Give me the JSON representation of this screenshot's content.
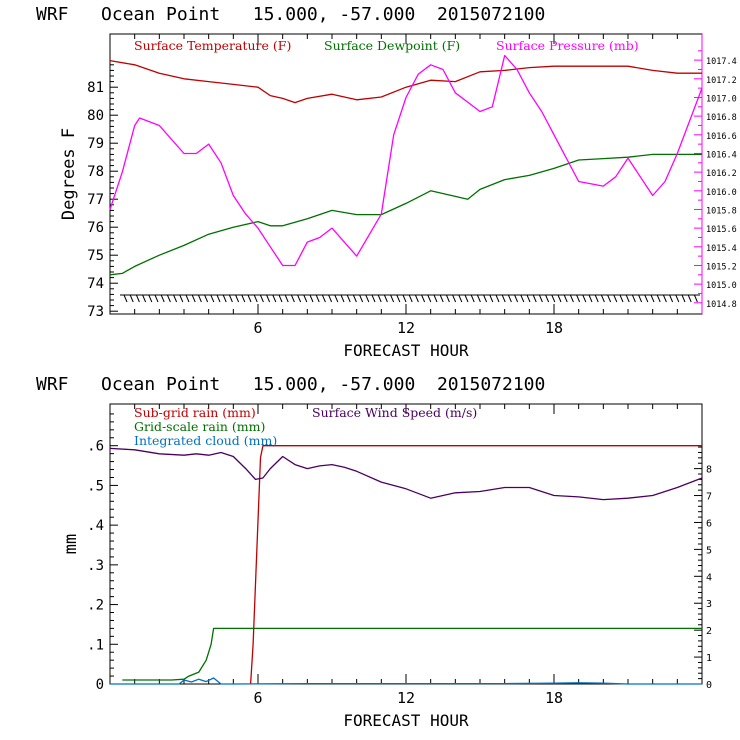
{
  "chart_data": [
    {
      "type": "line",
      "title": "WRF   Ocean Point   15.000, -57.000  2015072100",
      "xlabel": "FORECAST HOUR",
      "ylabel": "Degrees F",
      "xlim": [
        0,
        24
      ],
      "ylim": [
        72.9,
        82.9
      ],
      "xticks": [
        6,
        12,
        18
      ],
      "xtick_labels": [
        "6",
        "12",
        "18"
      ],
      "yticks": [
        73,
        74,
        75,
        76,
        77,
        78,
        79,
        80,
        81
      ],
      "ytick_labels": [
        "73",
        "74",
        "75",
        "76",
        "77",
        "78",
        "79",
        "80",
        "81"
      ],
      "y2lim": [
        1014.68,
        1017.68
      ],
      "y2ticks": [
        1014.8,
        1015.0,
        1015.2,
        1015.4,
        1015.6,
        1015.8,
        1016.0,
        1016.2,
        1016.4,
        1016.6,
        1016.8,
        1017.0,
        1017.2,
        1017.4
      ],
      "y2tick_labels": [
        "1014.8",
        "1015.0",
        "1015.2",
        "1015.4",
        "1015.6",
        "1015.8",
        "1016.0",
        "1016.2",
        "1016.4",
        "1016.6",
        "1016.8",
        "1017.0",
        "1017.2",
        "1017.4"
      ],
      "series": [
        {
          "name": "Surface Temperature (F)",
          "color": "#c00000",
          "axis": "left",
          "x": [
            0,
            1,
            2,
            3,
            4,
            5,
            6,
            6.5,
            7,
            7.5,
            8,
            9,
            10,
            11,
            12,
            13,
            14,
            15,
            16,
            17,
            18,
            19,
            20,
            21,
            22,
            23,
            24
          ],
          "y": [
            81.95,
            81.8,
            81.5,
            81.3,
            81.2,
            81.1,
            81.0,
            80.7,
            80.6,
            80.45,
            80.6,
            80.75,
            80.55,
            80.65,
            81.0,
            81.25,
            81.2,
            81.55,
            81.6,
            81.7,
            81.75,
            81.75,
            81.75,
            81.75,
            81.6,
            81.5,
            81.5
          ]
        },
        {
          "name": "Surface Dewpoint (F)",
          "color": "#007000",
          "axis": "left",
          "x": [
            0,
            0.5,
            1,
            2,
            3,
            4,
            5,
            6,
            6.5,
            7,
            8,
            9,
            10,
            11,
            12,
            13,
            14,
            14.5,
            15,
            16,
            17,
            18,
            19,
            20,
            21,
            22,
            24
          ],
          "y": [
            74.3,
            74.35,
            74.6,
            75.0,
            75.35,
            75.75,
            76.0,
            76.2,
            76.05,
            76.05,
            76.3,
            76.6,
            76.45,
            76.45,
            76.85,
            77.3,
            77.1,
            77.0,
            77.35,
            77.7,
            77.85,
            78.1,
            78.4,
            78.45,
            78.5,
            78.6,
            78.6
          ]
        },
        {
          "name": "Surface Pressure (mb)",
          "color": "#ff00ff",
          "axis": "right",
          "x": [
            0,
            0.5,
            1,
            1.2,
            2,
            3,
            3.5,
            4,
            4.5,
            5,
            5.5,
            6,
            6.5,
            7,
            7.5,
            8,
            8.5,
            9,
            9.5,
            10,
            11,
            11.5,
            12,
            12.5,
            13,
            13.5,
            14,
            14.5,
            15,
            15.5,
            16,
            16.5,
            17,
            17.5,
            18,
            19,
            20,
            20.5,
            21,
            21.5,
            22,
            22.5,
            23,
            24
          ],
          "y": [
            1015.8,
            1016.2,
            1016.7,
            1016.78,
            1016.7,
            1016.4,
            1016.4,
            1016.5,
            1016.3,
            1015.95,
            1015.75,
            1015.6,
            1015.4,
            1015.2,
            1015.2,
            1015.45,
            1015.5,
            1015.6,
            1015.45,
            1015.3,
            1015.75,
            1016.6,
            1017.0,
            1017.25,
            1017.35,
            1017.3,
            1017.05,
            1016.95,
            1016.85,
            1016.9,
            1017.45,
            1017.3,
            1017.05,
            1016.85,
            1016.6,
            1016.1,
            1016.05,
            1016.15,
            1016.35,
            1016.15,
            1015.95,
            1016.1,
            1016.4,
            1017.1
          ]
        }
      ]
    },
    {
      "type": "line",
      "title": "WRF   Ocean Point   15.000, -57.000  2015072100",
      "xlabel": "FORECAST HOUR",
      "ylabel": "mm",
      "xlim": [
        0,
        24
      ],
      "ylim": [
        0,
        0.705
      ],
      "xticks": [
        6,
        12,
        18
      ],
      "xtick_labels": [
        "6",
        "12",
        "18"
      ],
      "yticks": [
        0,
        0.1,
        0.2,
        0.3,
        0.4,
        0.5,
        0.6
      ],
      "ytick_labels": [
        "0",
        ".1",
        ".2",
        ".3",
        ".4",
        ".5",
        ".6"
      ],
      "y2lim": [
        0,
        10.4
      ],
      "y2ticks": [
        0,
        1,
        2,
        3,
        4,
        5,
        6,
        7,
        8
      ],
      "y2tick_labels": [
        "0",
        "1",
        "2",
        "3",
        "4",
        "5",
        "6",
        "7",
        "8"
      ],
      "series": [
        {
          "name": "Sub-grid rain (mm)",
          "color": "#c00000",
          "axis": "left",
          "x": [
            5.7,
            5.8,
            6.1,
            6.2,
            24
          ],
          "y": [
            0,
            0.1,
            0.57,
            0.6,
            0.6
          ]
        },
        {
          "name": "Grid-scale rain (mm)",
          "color": "#007000",
          "axis": "left",
          "x": [
            0.5,
            2.5,
            3.0,
            3.2,
            3.6,
            3.9,
            4.1,
            4.2,
            24
          ],
          "y": [
            0.01,
            0.01,
            0.012,
            0.02,
            0.03,
            0.06,
            0.1,
            0.14,
            0.14
          ]
        },
        {
          "name": "Integrated cloud (mm)",
          "color": "#0070c0",
          "axis": "left",
          "x": [
            0,
            2,
            2.8,
            3.0,
            3.3,
            3.6,
            3.9,
            4.2,
            4.5,
            5,
            8,
            12,
            16,
            18,
            19,
            20,
            21,
            24
          ],
          "y": [
            0,
            0,
            0.0,
            0.01,
            0.005,
            0.012,
            0.006,
            0.015,
            0.0,
            0,
            0.001,
            0.001,
            0.001,
            0.002,
            0.003,
            0.002,
            0.0,
            0
          ]
        },
        {
          "name": "Surface Wind Speed (m/s)",
          "color": "#4b0060",
          "axis": "right",
          "x": [
            0,
            1,
            2,
            3,
            3.5,
            4,
            4.5,
            5,
            5.5,
            5.9,
            6.2,
            6.5,
            7,
            7.5,
            8,
            8.5,
            9,
            9.5,
            10,
            11,
            12,
            13,
            14,
            15,
            16,
            17,
            18,
            19,
            20,
            21,
            22,
            23,
            24
          ],
          "y": [
            8.75,
            8.7,
            8.55,
            8.5,
            8.55,
            8.5,
            8.6,
            8.45,
            8.0,
            7.6,
            7.65,
            8.0,
            8.45,
            8.15,
            8.0,
            8.1,
            8.15,
            8.05,
            7.9,
            7.5,
            7.25,
            6.9,
            7.1,
            7.15,
            7.3,
            7.3,
            7.0,
            6.95,
            6.85,
            6.9,
            7.0,
            7.3,
            7.65
          ]
        }
      ]
    }
  ]
}
